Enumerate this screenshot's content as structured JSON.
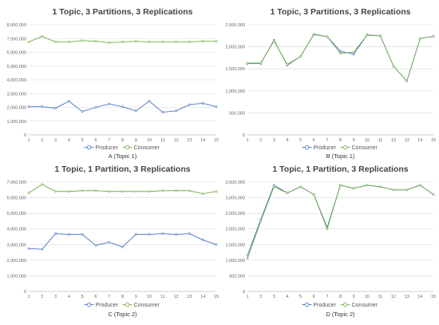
{
  "chart_data": [
    {
      "type": "line",
      "title": "1 Topic, 3 Partitions, 3 Replications",
      "caption": "A (Topic 1)",
      "x": [
        1,
        2,
        3,
        4,
        5,
        6,
        7,
        8,
        9,
        10,
        11,
        12,
        13,
        14,
        15
      ],
      "ylim": [
        0,
        8000000
      ],
      "yticks": [
        0,
        1000000,
        2000000,
        3000000,
        4000000,
        5000000,
        6000000,
        7000000,
        8000000
      ],
      "ytick_labels": [
        "0",
        "1,000,000",
        "2,000,000",
        "3,000,000",
        "4,000,000",
        "5,000,000",
        "6,000,000",
        "7,000,000",
        "8,000,000"
      ],
      "grid": true,
      "legend": "bottom",
      "series": [
        {
          "name": "Producer",
          "color": "#4472c4",
          "values": [
            2050000,
            2050000,
            1950000,
            2450000,
            1700000,
            2000000,
            2250000,
            2050000,
            1750000,
            2450000,
            1650000,
            1750000,
            2200000,
            2300000,
            2050000
          ]
        },
        {
          "name": "Consumer",
          "color": "#70ad47",
          "values": [
            6750000,
            7150000,
            6750000,
            6750000,
            6850000,
            6800000,
            6700000,
            6750000,
            6800000,
            6750000,
            6750000,
            6750000,
            6750000,
            6800000,
            6800000
          ]
        }
      ]
    },
    {
      "type": "line",
      "title": "1 Topic, 3 Partitions, 3 Replications",
      "caption": "B (Topic 1)",
      "x": [
        1,
        2,
        3,
        4,
        5,
        6,
        7,
        8,
        9,
        10,
        11,
        12,
        13,
        14,
        15
      ],
      "ylim": [
        0,
        2500000
      ],
      "yticks": [
        0,
        500000,
        1000000,
        1500000,
        2000000,
        2500000
      ],
      "ytick_labels": [
        "0",
        "500,000",
        "1,000,000",
        "1,500,000",
        "2,000,000",
        "2,500,000"
      ],
      "grid": true,
      "legend": "bottom",
      "series": [
        {
          "name": "Producer",
          "color": "#4472c4",
          "values": [
            1620000,
            1620000,
            2150000,
            1580000,
            1780000,
            2280000,
            2230000,
            1900000,
            1830000,
            2270000,
            2250000,
            1560000,
            1220000,
            2190000,
            2240000
          ]
        },
        {
          "name": "Consumer",
          "color": "#70ad47",
          "values": [
            1630000,
            1630000,
            2130000,
            1600000,
            1780000,
            2290000,
            2230000,
            1850000,
            1880000,
            2260000,
            2250000,
            1560000,
            1220000,
            2190000,
            2240000
          ]
        }
      ]
    },
    {
      "type": "line",
      "title": "1 Topic, 1 Partition, 3 Replications",
      "caption": "C (Topic 2)",
      "x": [
        1,
        2,
        3,
        4,
        5,
        6,
        7,
        8,
        9,
        10,
        11,
        12,
        13,
        14,
        15
      ],
      "ylim": [
        0,
        7000000
      ],
      "yticks": [
        0,
        1000000,
        2000000,
        3000000,
        4000000,
        5000000,
        6000000,
        7000000
      ],
      "ytick_labels": [
        "0",
        "1,000,000",
        "2,000,000",
        "3,000,000",
        "4,000,000",
        "5,000,000",
        "6,000,000",
        "7,000,000"
      ],
      "grid": true,
      "legend": "bottom",
      "series": [
        {
          "name": "Producer",
          "color": "#4472c4",
          "values": [
            2750000,
            2700000,
            3700000,
            3650000,
            3650000,
            2950000,
            3150000,
            2850000,
            3650000,
            3650000,
            3700000,
            3650000,
            3700000,
            3300000,
            3000000
          ]
        },
        {
          "name": "Consumer",
          "color": "#70ad47",
          "values": [
            6300000,
            6850000,
            6400000,
            6400000,
            6450000,
            6450000,
            6400000,
            6400000,
            6400000,
            6400000,
            6450000,
            6450000,
            6450000,
            6250000,
            6400000
          ]
        }
      ]
    },
    {
      "type": "line",
      "title": "1 Topic, 1 Partition, 3 Replications",
      "caption": "D (Topic 2)",
      "x": [
        1,
        2,
        3,
        4,
        5,
        6,
        7,
        8,
        9,
        10,
        11,
        12,
        13,
        14,
        15
      ],
      "ylim": [
        0,
        3500000
      ],
      "yticks": [
        0,
        500000,
        1000000,
        1500000,
        2000000,
        2500000,
        3000000,
        3500000
      ],
      "ytick_labels": [
        "0",
        "500,000",
        "1,000,000",
        "1,500,000",
        "2,000,000",
        "2,500,000",
        "3,000,000",
        "3,500,000"
      ],
      "grid": true,
      "legend": "bottom",
      "series": [
        {
          "name": "Producer",
          "color": "#4472c4",
          "values": [
            1150000,
            2300000,
            3400000,
            3150000,
            3350000,
            3100000,
            2050000,
            3400000,
            3300000,
            3400000,
            3350000,
            3250000,
            3250000,
            3400000,
            3100000
          ]
        },
        {
          "name": "Consumer",
          "color": "#70ad47",
          "values": [
            1050000,
            2250000,
            3350000,
            3150000,
            3350000,
            3100000,
            2000000,
            3400000,
            3300000,
            3400000,
            3350000,
            3250000,
            3250000,
            3400000,
            3100000
          ]
        }
      ]
    }
  ]
}
